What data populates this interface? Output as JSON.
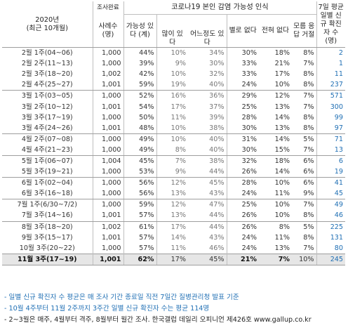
{
  "header": {
    "period_title": "2020년",
    "period_sub": "(최근 10개월)",
    "survey_done": "조사완료",
    "sample": "사례수",
    "sample_unit": "(명)",
    "group_title": "코로나19 본인 감염 가능성 인식",
    "possible": "가능성 있다 (계)",
    "very": "많이 있다",
    "somewhat": "어느정도 있다",
    "not_much": "별로 없다",
    "none": "전혀 없다",
    "dk": "모름 응답 거절",
    "cases_title": "7일 평균 일별 신규 확진자 수 (명)"
  },
  "rows": [
    {
      "period": "2월 1주(04~06)",
      "n": "1,000",
      "pos": "44%",
      "mny": "10%",
      "smw": "34%",
      "nrm": "30%",
      "nvr": "18%",
      "dk": "8%",
      "cases": "2",
      "group_end": false
    },
    {
      "period": "2월 2주(11~13)",
      "n": "1,000",
      "pos": "39%",
      "mny": "9%",
      "smw": "30%",
      "nrm": "33%",
      "nvr": "21%",
      "dk": "7%",
      "cases": "1",
      "group_end": false
    },
    {
      "period": "2월 3주(18~20)",
      "n": "1,002",
      "pos": "42%",
      "mny": "10%",
      "smw": "32%",
      "nrm": "33%",
      "nvr": "17%",
      "dk": "8%",
      "cases": "11",
      "group_end": false
    },
    {
      "period": "2월 4주(25~27)",
      "n": "1,001",
      "pos": "59%",
      "mny": "19%",
      "smw": "40%",
      "nrm": "24%",
      "nvr": "10%",
      "dk": "8%",
      "cases": "237",
      "group_end": true
    },
    {
      "period": "3월 1주(03~05)",
      "n": "1,000",
      "pos": "52%",
      "mny": "16%",
      "smw": "36%",
      "nrm": "29%",
      "nvr": "12%",
      "dk": "7%",
      "cases": "571",
      "group_end": false
    },
    {
      "period": "3월 2주(10~12)",
      "n": "1,001",
      "pos": "54%",
      "mny": "17%",
      "smw": "37%",
      "nrm": "25%",
      "nvr": "13%",
      "dk": "7%",
      "cases": "300",
      "group_end": false
    },
    {
      "period": "3월 3주(17~19)",
      "n": "1,000",
      "pos": "50%",
      "mny": "11%",
      "smw": "39%",
      "nrm": "28%",
      "nvr": "14%",
      "dk": "8%",
      "cases": "99",
      "group_end": false
    },
    {
      "period": "3월 4주(24~26)",
      "n": "1,001",
      "pos": "48%",
      "mny": "10%",
      "smw": "38%",
      "nrm": "30%",
      "nvr": "13%",
      "dk": "8%",
      "cases": "97",
      "group_end": true
    },
    {
      "period": "4월 2주(07~08)",
      "n": "1,000",
      "pos": "49%",
      "mny": "10%",
      "smw": "40%",
      "nrm": "31%",
      "nvr": "14%",
      "dk": "5%",
      "cases": "71",
      "group_end": false
    },
    {
      "period": "4월 4주(21~23)",
      "n": "1,000",
      "pos": "49%",
      "mny": "8%",
      "smw": "40%",
      "nrm": "30%",
      "nvr": "15%",
      "dk": "7%",
      "cases": "13",
      "group_end": true
    },
    {
      "period": "5월 1주(06~07)",
      "n": "1,004",
      "pos": "45%",
      "mny": "7%",
      "smw": "38%",
      "nrm": "32%",
      "nvr": "18%",
      "dk": "6%",
      "cases": "6",
      "group_end": false
    },
    {
      "period": "5월 3주(19~21)",
      "n": "1,000",
      "pos": "53%",
      "mny": "9%",
      "smw": "44%",
      "nrm": "26%",
      "nvr": "14%",
      "dk": "6%",
      "cases": "19",
      "group_end": true
    },
    {
      "period": "6월 1주(02~04)",
      "n": "1,000",
      "pos": "56%",
      "mny": "12%",
      "smw": "45%",
      "nrm": "28%",
      "nvr": "10%",
      "dk": "6%",
      "cases": "41",
      "group_end": false
    },
    {
      "period": "6월 3주(16~18)",
      "n": "1,000",
      "pos": "56%",
      "mny": "13%",
      "smw": "43%",
      "nrm": "24%",
      "nvr": "11%",
      "dk": "9%",
      "cases": "45",
      "group_end": true
    },
    {
      "period": "7월 1주(6/30~7/2)",
      "n": "1,000",
      "pos": "59%",
      "mny": "12%",
      "smw": "47%",
      "nrm": "25%",
      "nvr": "10%",
      "dk": "7%",
      "cases": "49",
      "group_end": false
    },
    {
      "period": "7월 3주(14~16)",
      "n": "1,001",
      "pos": "57%",
      "mny": "13%",
      "smw": "44%",
      "nrm": "26%",
      "nvr": "10%",
      "dk": "8%",
      "cases": "46",
      "group_end": true
    },
    {
      "period": "8월 3주(18~20)",
      "n": "1,002",
      "pos": "61%",
      "mny": "17%",
      "smw": "44%",
      "nrm": "26%",
      "nvr": "8%",
      "dk": "5%",
      "cases": "225",
      "group_end": false
    },
    {
      "period": "9월 3주(15~17)",
      "n": "1,001",
      "pos": "57%",
      "mny": "14%",
      "smw": "43%",
      "nrm": "24%",
      "nvr": "11%",
      "dk": "8%",
      "cases": "131",
      "group_end": false
    },
    {
      "period": "10월 3주(20~22)",
      "n": "1,000",
      "pos": "57%",
      "mny": "11%",
      "smw": "46%",
      "nrm": "24%",
      "nvr": "13%",
      "dk": "7%",
      "cases": "80",
      "group_end": false
    }
  ],
  "last_row": {
    "period": "11월 3주(17~19)",
    "n": "1,001",
    "pos": "62%",
    "mny": "17%",
    "smw": "45%",
    "nrm": "21%",
    "nvr": "7%",
    "dk": "10%",
    "cases": "245"
  },
  "notes": [
    "- 일별 신규 확진자 수 평균은 매 조사 기간 종료일 직전 7일간 질병관리청 발표 기준",
    "- 10월 4주부터 11월 2주까지 3주간 일별 신규 확진자 수는 평균 114명",
    "- 2~3월은 매주, 4월부터 격주, 8월부터 월간 조사. 한국갤럽 데일리 오피니언 제426호 www.gallup.co.kr"
  ]
}
